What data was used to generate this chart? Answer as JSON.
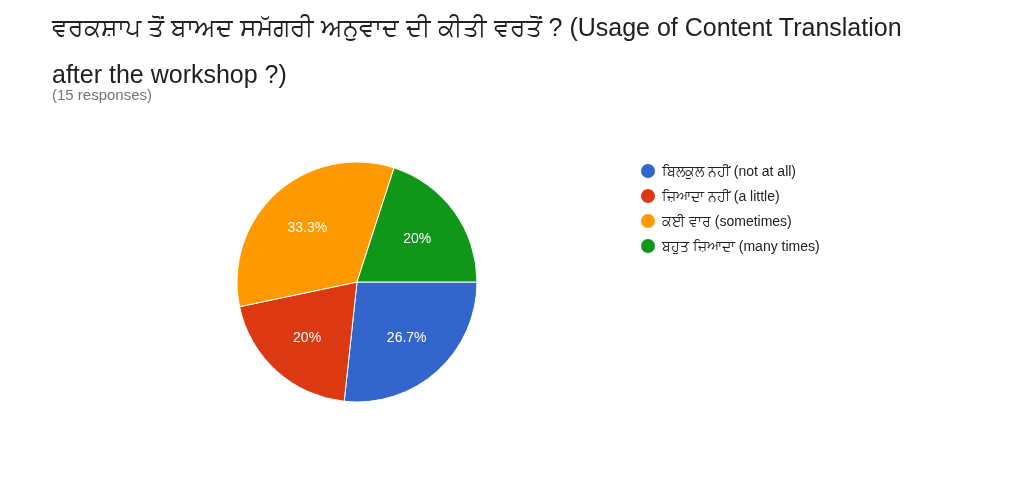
{
  "chart_data": {
    "type": "pie",
    "title": "ਵਰਕਸ਼ਾਪ ਤੋਂ ਬਾਅਦ ਸਮੱਗਰੀ ਅਨੁਵਾਦ ਦੀ ਕੀਤੀ ਵਰਤੋਂ ? (Usage of Content Translation after the workshop ?)",
    "subtitle": "(15 responses)",
    "categories": [
      "ਬਿਲਕੁਲ ਨਹੀਂ (not at all)",
      "ਜ਼ਿਆਦਾ ਨਹੀਂ (a little)",
      "ਕਈ ਵਾਰ (sometimes)",
      "ਬਹੁਤ ਜ਼ਿਆਦਾ (many times)"
    ],
    "values": [
      26.7,
      20,
      33.3,
      20
    ],
    "colors": [
      "#3366cc",
      "#dc3912",
      "#ff9900",
      "#109618"
    ],
    "value_labels": [
      "26.7%",
      "20%",
      "33.3%",
      "20%"
    ],
    "legend": "right"
  }
}
